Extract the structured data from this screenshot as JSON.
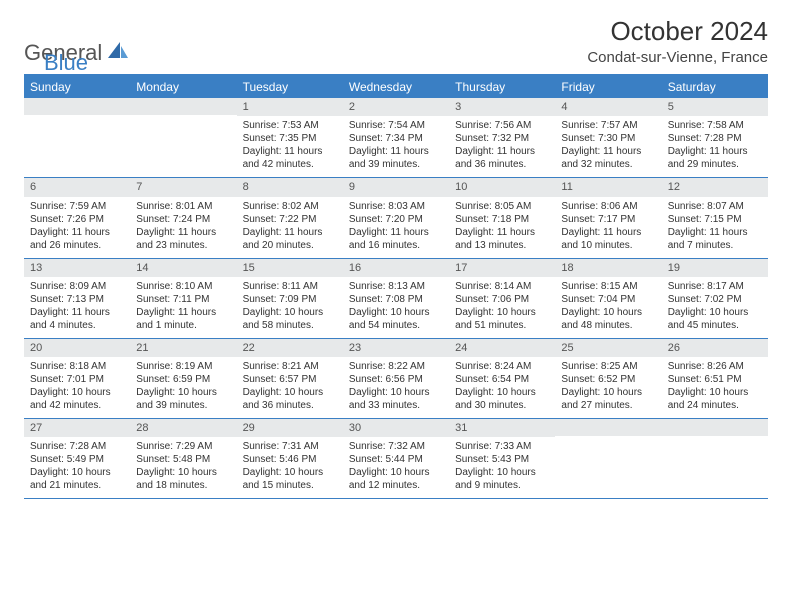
{
  "brand": {
    "general": "General",
    "blue": "Blue"
  },
  "header": {
    "month_title": "October 2024",
    "location": "Condat-sur-Vienne, France"
  },
  "styling": {
    "accent_color": "#3a7fc4",
    "header_bg": "#3a7fc4",
    "daynum_bg": "#e7e9ea",
    "page_bg": "#ffffff",
    "title_fontsize": 26,
    "location_fontsize": 15,
    "weekday_fontsize": 12,
    "cell_fontsize": 10,
    "columns": 7
  },
  "weekdays": [
    "Sunday",
    "Monday",
    "Tuesday",
    "Wednesday",
    "Thursday",
    "Friday",
    "Saturday"
  ],
  "cells": [
    {
      "day": "",
      "sunrise": "",
      "sunset": "",
      "daylight": ""
    },
    {
      "day": "",
      "sunrise": "",
      "sunset": "",
      "daylight": ""
    },
    {
      "day": "1",
      "sunrise": "Sunrise: 7:53 AM",
      "sunset": "Sunset: 7:35 PM",
      "daylight": "Daylight: 11 hours and 42 minutes."
    },
    {
      "day": "2",
      "sunrise": "Sunrise: 7:54 AM",
      "sunset": "Sunset: 7:34 PM",
      "daylight": "Daylight: 11 hours and 39 minutes."
    },
    {
      "day": "3",
      "sunrise": "Sunrise: 7:56 AM",
      "sunset": "Sunset: 7:32 PM",
      "daylight": "Daylight: 11 hours and 36 minutes."
    },
    {
      "day": "4",
      "sunrise": "Sunrise: 7:57 AM",
      "sunset": "Sunset: 7:30 PM",
      "daylight": "Daylight: 11 hours and 32 minutes."
    },
    {
      "day": "5",
      "sunrise": "Sunrise: 7:58 AM",
      "sunset": "Sunset: 7:28 PM",
      "daylight": "Daylight: 11 hours and 29 minutes."
    },
    {
      "day": "6",
      "sunrise": "Sunrise: 7:59 AM",
      "sunset": "Sunset: 7:26 PM",
      "daylight": "Daylight: 11 hours and 26 minutes."
    },
    {
      "day": "7",
      "sunrise": "Sunrise: 8:01 AM",
      "sunset": "Sunset: 7:24 PM",
      "daylight": "Daylight: 11 hours and 23 minutes."
    },
    {
      "day": "8",
      "sunrise": "Sunrise: 8:02 AM",
      "sunset": "Sunset: 7:22 PM",
      "daylight": "Daylight: 11 hours and 20 minutes."
    },
    {
      "day": "9",
      "sunrise": "Sunrise: 8:03 AM",
      "sunset": "Sunset: 7:20 PM",
      "daylight": "Daylight: 11 hours and 16 minutes."
    },
    {
      "day": "10",
      "sunrise": "Sunrise: 8:05 AM",
      "sunset": "Sunset: 7:18 PM",
      "daylight": "Daylight: 11 hours and 13 minutes."
    },
    {
      "day": "11",
      "sunrise": "Sunrise: 8:06 AM",
      "sunset": "Sunset: 7:17 PM",
      "daylight": "Daylight: 11 hours and 10 minutes."
    },
    {
      "day": "12",
      "sunrise": "Sunrise: 8:07 AM",
      "sunset": "Sunset: 7:15 PM",
      "daylight": "Daylight: 11 hours and 7 minutes."
    },
    {
      "day": "13",
      "sunrise": "Sunrise: 8:09 AM",
      "sunset": "Sunset: 7:13 PM",
      "daylight": "Daylight: 11 hours and 4 minutes."
    },
    {
      "day": "14",
      "sunrise": "Sunrise: 8:10 AM",
      "sunset": "Sunset: 7:11 PM",
      "daylight": "Daylight: 11 hours and 1 minute."
    },
    {
      "day": "15",
      "sunrise": "Sunrise: 8:11 AM",
      "sunset": "Sunset: 7:09 PM",
      "daylight": "Daylight: 10 hours and 58 minutes."
    },
    {
      "day": "16",
      "sunrise": "Sunrise: 8:13 AM",
      "sunset": "Sunset: 7:08 PM",
      "daylight": "Daylight: 10 hours and 54 minutes."
    },
    {
      "day": "17",
      "sunrise": "Sunrise: 8:14 AM",
      "sunset": "Sunset: 7:06 PM",
      "daylight": "Daylight: 10 hours and 51 minutes."
    },
    {
      "day": "18",
      "sunrise": "Sunrise: 8:15 AM",
      "sunset": "Sunset: 7:04 PM",
      "daylight": "Daylight: 10 hours and 48 minutes."
    },
    {
      "day": "19",
      "sunrise": "Sunrise: 8:17 AM",
      "sunset": "Sunset: 7:02 PM",
      "daylight": "Daylight: 10 hours and 45 minutes."
    },
    {
      "day": "20",
      "sunrise": "Sunrise: 8:18 AM",
      "sunset": "Sunset: 7:01 PM",
      "daylight": "Daylight: 10 hours and 42 minutes."
    },
    {
      "day": "21",
      "sunrise": "Sunrise: 8:19 AM",
      "sunset": "Sunset: 6:59 PM",
      "daylight": "Daylight: 10 hours and 39 minutes."
    },
    {
      "day": "22",
      "sunrise": "Sunrise: 8:21 AM",
      "sunset": "Sunset: 6:57 PM",
      "daylight": "Daylight: 10 hours and 36 minutes."
    },
    {
      "day": "23",
      "sunrise": "Sunrise: 8:22 AM",
      "sunset": "Sunset: 6:56 PM",
      "daylight": "Daylight: 10 hours and 33 minutes."
    },
    {
      "day": "24",
      "sunrise": "Sunrise: 8:24 AM",
      "sunset": "Sunset: 6:54 PM",
      "daylight": "Daylight: 10 hours and 30 minutes."
    },
    {
      "day": "25",
      "sunrise": "Sunrise: 8:25 AM",
      "sunset": "Sunset: 6:52 PM",
      "daylight": "Daylight: 10 hours and 27 minutes."
    },
    {
      "day": "26",
      "sunrise": "Sunrise: 8:26 AM",
      "sunset": "Sunset: 6:51 PM",
      "daylight": "Daylight: 10 hours and 24 minutes."
    },
    {
      "day": "27",
      "sunrise": "Sunrise: 7:28 AM",
      "sunset": "Sunset: 5:49 PM",
      "daylight": "Daylight: 10 hours and 21 minutes."
    },
    {
      "day": "28",
      "sunrise": "Sunrise: 7:29 AM",
      "sunset": "Sunset: 5:48 PM",
      "daylight": "Daylight: 10 hours and 18 minutes."
    },
    {
      "day": "29",
      "sunrise": "Sunrise: 7:31 AM",
      "sunset": "Sunset: 5:46 PM",
      "daylight": "Daylight: 10 hours and 15 minutes."
    },
    {
      "day": "30",
      "sunrise": "Sunrise: 7:32 AM",
      "sunset": "Sunset: 5:44 PM",
      "daylight": "Daylight: 10 hours and 12 minutes."
    },
    {
      "day": "31",
      "sunrise": "Sunrise: 7:33 AM",
      "sunset": "Sunset: 5:43 PM",
      "daylight": "Daylight: 10 hours and 9 minutes."
    },
    {
      "day": "",
      "sunrise": "",
      "sunset": "",
      "daylight": ""
    },
    {
      "day": "",
      "sunrise": "",
      "sunset": "",
      "daylight": ""
    }
  ]
}
